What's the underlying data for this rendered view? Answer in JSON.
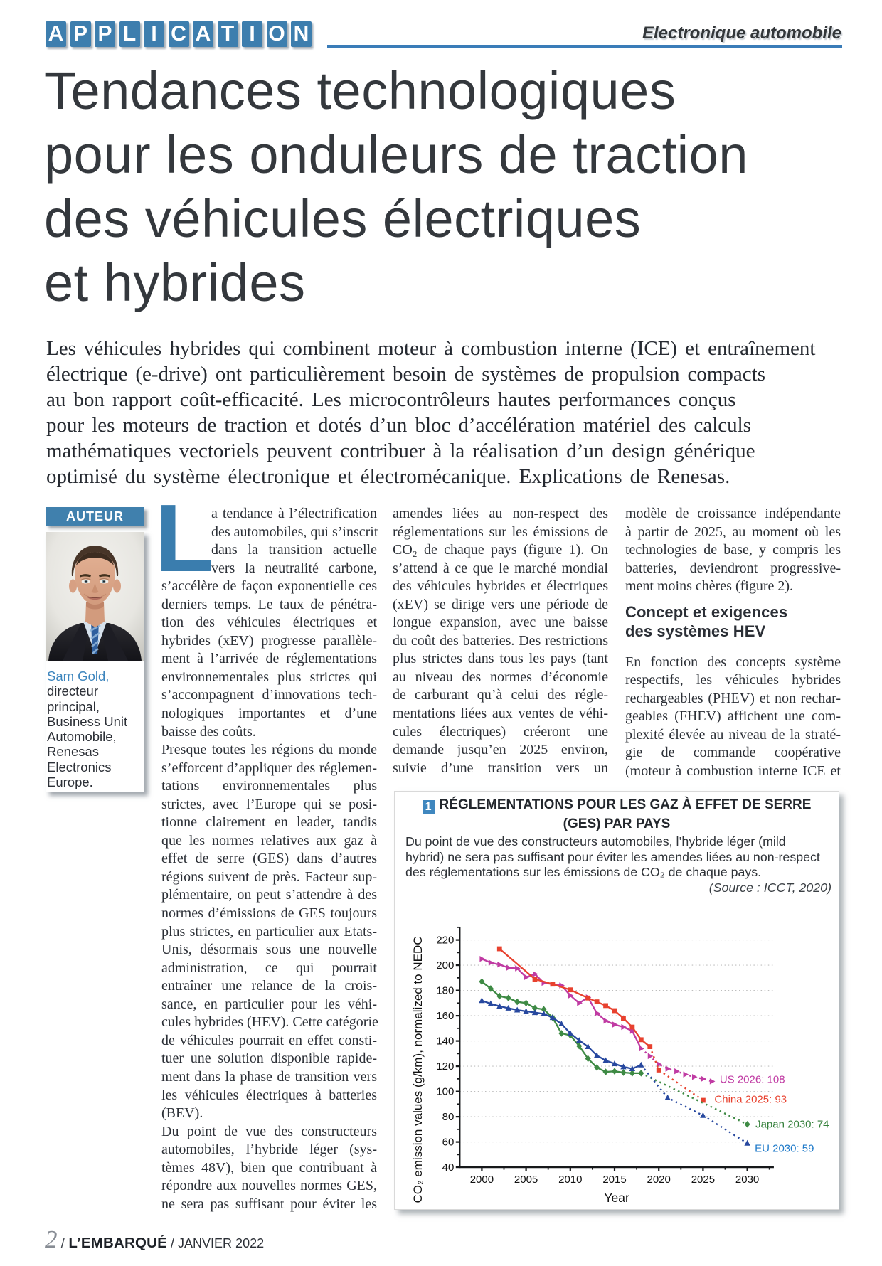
{
  "header": {
    "kicker_letters": "APPLICATION",
    "rubric": "Electronique automobile",
    "accent_color": "#3a7cb8"
  },
  "article": {
    "title_lines": [
      "Tendances technologiques",
      "pour les onduleurs de traction",
      "des véhicules électriques",
      "et hybrides"
    ],
    "lede_lines": [
      "Les véhicules hybrides qui combinent moteur à combustion interne (ICE) et entraînement",
      "électrique (e-drive) ont particulièrement besoin de systèmes de propulsion compacts",
      "au bon rapport coût-efficacité. Les microcontrôleurs hautes performances conçus",
      "pour les moteurs de traction et dotés d’un bloc d’accélération matériel des calculs",
      "mathématiques vectoriels peuvent contribuer à la réalisation d’un design générique",
      "optimisé du système électronique et électromécanique. Explications de Renesas."
    ]
  },
  "author": {
    "box_label": "AUTEUR",
    "name": "Sam Gold,",
    "role_lines": [
      "directeur",
      "principal,",
      "Business Unit",
      "Automobile,",
      "Renesas",
      "Electronics",
      "Europe."
    ]
  },
  "columns": {
    "col1": {
      "dropcap": "L",
      "blocks": [
        {
          "type": "p",
          "lines": [
            "a tendance à l’électrification",
            "des automobiles, qui s’inscrit",
            "dans la transition actuelle",
            "vers la neutralité carbone,",
            "s’accélère de façon exponentielle ces",
            "derniers temps. Le taux de pénétra-",
            "tion des véhicules électriques et",
            "hybrides (xEV) progresse parallèle-",
            "ment à l’arrivée de réglementations",
            "environnementales plus strictes qui",
            "s’accompagnent d’innovations tech-",
            "nologiques importantes et d’une",
            "baisse des coûts."
          ]
        },
        {
          "type": "p",
          "lines": [
            "Presque toutes les régions du monde",
            "s’efforcent d’appliquer des réglemen-",
            "tations environnementales plus",
            "strictes, avec l’Europe qui se posi-",
            "tionne clairement  en leader, tandis",
            "que les normes relatives aux gaz à",
            "effet de serre (GES) dans d’autres",
            "régions suivent de près. Facteur sup-",
            "plémentaire, on peut s’attendre à des",
            "normes d’émissions de GES toujours",
            "plus strictes, en particulier aux Etats-",
            "Unis, désormais sous une nouvelle",
            "administration, ce qui pourrait",
            "entraîner une relance de la crois-",
            "sance, en particulier pour les véhi-",
            "cules hybrides (HEV). Cette catégorie",
            "de véhicules pourrait en effet consti-",
            "tuer une solution disponible rapide-",
            "ment dans la phase de transition vers",
            "les véhicules électriques à batteries",
            "(BEV)."
          ]
        },
        {
          "type": "p",
          "cont": true,
          "lines": [
            "Du point de vue des constructeurs",
            "automobiles, l’hybride léger (sys-",
            "tèmes 48V), bien que contribuant à",
            "répondre aux nouvelles normes GES,",
            "ne sera pas suffisant pour éviter les"
          ]
        }
      ]
    },
    "col2": {
      "blocks": [
        {
          "type": "p",
          "cont": true,
          "lines": [
            "amendes liées au non-respect des",
            "réglementations sur les émissions de",
            "CO₂ de chaque pays (figure 1). On",
            "s’attend à ce que le marché mondial",
            "des véhicules hybrides et électriques",
            "(xEV) se dirige vers une période de",
            "longue expansion, avec une baisse",
            "du coût des batteries. Des restrictions",
            "plus strictes dans tous les pays (tant",
            "au niveau des normes d’économie",
            "de carburant qu’à celui des régle-",
            "mentations liées aux ventes de véhi-",
            "cules électriques) créeront une",
            "demande jusqu’en 2025 environ,",
            "suivie d’une transition vers un"
          ]
        }
      ]
    },
    "col3": {
      "blocks": [
        {
          "type": "p",
          "lines": [
            "modèle de croissance indépendante",
            "à partir de 2025, au moment où les",
            "technologies de base, y compris les",
            "batteries, deviendront progressive-",
            "ment moins chères (figure 2)."
          ]
        },
        {
          "type": "h2",
          "lines": [
            "Concept et exigences",
            "des systèmes HEV"
          ]
        },
        {
          "type": "p",
          "cont": true,
          "lines": [
            "En fonction des concepts système",
            "respectifs, les véhicules hybrides",
            "rechargeables (PHEV) et non rechar-",
            "geables (FHEV) affichent une com-",
            "plexité élevée au niveau de la straté-",
            "gie de commande coopérative",
            "(moteur à combustion interne ICE et"
          ]
        }
      ]
    }
  },
  "figure": {
    "number": "1",
    "title_lines": [
      "RÉGLEMENTATIONS POUR LES GAZ À EFFET DE SERRE",
      "(GES) PAR PAYS"
    ],
    "desc_lines": [
      "Du point de vue des constructeurs automobiles, l’hybride léger (mild",
      "hybrid) ne sera pas suffisant pour éviter les amendes liées au non-respect",
      "des réglementations sur les émissions de CO₂ de chaque pays."
    ],
    "source": "(Source : ICCT, 2020)"
  },
  "chart_data": {
    "type": "line",
    "xlabel": "Year",
    "ylabel": "CO₂ emission values (g/km), normalized to NEDC",
    "xlim": [
      1997.5,
      2033
    ],
    "ylim": [
      40,
      230
    ],
    "xticks": [
      2000,
      2005,
      2010,
      2015,
      2020,
      2025,
      2030
    ],
    "yticks": [
      40,
      60,
      80,
      100,
      120,
      140,
      160,
      180,
      200,
      220
    ],
    "grid": "horizontal-dotted",
    "legend_position": "end-of-line-labels",
    "series": [
      {
        "name": "US",
        "color": "#c03ba3",
        "marker": "triangle-right",
        "label": "US 2026: 108",
        "label_color": "#c03ba3",
        "solid": [
          [
            2000,
            205
          ],
          [
            2001,
            202
          ],
          [
            2002,
            200.5
          ],
          [
            2003,
            198
          ],
          [
            2004,
            197.5
          ],
          [
            2005,
            190.5
          ],
          [
            2006,
            193
          ],
          [
            2007,
            186
          ],
          [
            2008,
            185
          ],
          [
            2009,
            184
          ],
          [
            2010,
            176
          ],
          [
            2011,
            170
          ],
          [
            2012,
            174.5
          ],
          [
            2013,
            162
          ],
          [
            2014,
            156
          ],
          [
            2015,
            153
          ],
          [
            2016,
            151
          ],
          [
            2017,
            148
          ],
          [
            2018,
            134
          ]
        ],
        "dotted": [
          [
            2018,
            134
          ],
          [
            2019,
            128
          ],
          [
            2020,
            121.5
          ],
          [
            2021,
            118
          ],
          [
            2022,
            116
          ],
          [
            2023,
            113.5
          ],
          [
            2024,
            111.5
          ],
          [
            2025,
            110
          ],
          [
            2026,
            108
          ]
        ],
        "dotted_marker_years": [
          2019,
          2020,
          2021,
          2022,
          2023,
          2024,
          2025,
          2026
        ]
      },
      {
        "name": "China",
        "color": "#e8412e",
        "marker": "square",
        "label": "China 2025: 93",
        "label_color": "#e8412e",
        "solid": [
          [
            2002,
            213
          ],
          [
            2006,
            189
          ],
          [
            2008,
            185
          ],
          [
            2010,
            180.5
          ],
          [
            2012,
            174
          ],
          [
            2013,
            171
          ],
          [
            2014,
            168
          ],
          [
            2015,
            164
          ],
          [
            2016,
            158
          ],
          [
            2017,
            151
          ],
          [
            2018,
            141
          ],
          [
            2019,
            135.5
          ]
        ],
        "dotted": [
          [
            2019,
            135.5
          ],
          [
            2020,
            117
          ],
          [
            2025,
            93
          ]
        ],
        "dotted_marker_years": [
          2020,
          2025
        ]
      },
      {
        "name": "Japan",
        "color": "#3e8a44",
        "marker": "diamond",
        "label": "Japan 2030: 74",
        "label_color": "#35803b",
        "solid": [
          [
            2000,
            187
          ],
          [
            2001,
            181.5
          ],
          [
            2002,
            175.5
          ],
          [
            2003,
            174
          ],
          [
            2004,
            171
          ],
          [
            2005,
            170
          ],
          [
            2006,
            166
          ],
          [
            2007,
            165
          ],
          [
            2008,
            158.5
          ],
          [
            2009,
            146
          ],
          [
            2010,
            144.5
          ],
          [
            2011,
            136
          ],
          [
            2012,
            126
          ],
          [
            2013,
            119
          ],
          [
            2014,
            115.5
          ],
          [
            2015,
            116
          ],
          [
            2016,
            115
          ],
          [
            2017,
            114.5
          ],
          [
            2018,
            114.5
          ]
        ],
        "dotted": [
          [
            2018,
            114.5
          ],
          [
            2030,
            74
          ]
        ],
        "dotted_marker_years": [
          2030
        ]
      },
      {
        "name": "EU",
        "color": "#27489f",
        "marker": "triangle-up",
        "label": "EU 2030: 59",
        "label_color": "#1f7ac9",
        "solid": [
          [
            2000,
            172
          ],
          [
            2001,
            169.5
          ],
          [
            2002,
            167.5
          ],
          [
            2003,
            166
          ],
          [
            2004,
            164.5
          ],
          [
            2005,
            163.5
          ],
          [
            2006,
            162.5
          ],
          [
            2007,
            161.5
          ],
          [
            2008,
            158.5
          ],
          [
            2009,
            153.5
          ],
          [
            2010,
            146
          ],
          [
            2011,
            140.5
          ],
          [
            2012,
            135.5
          ],
          [
            2013,
            128.5
          ],
          [
            2014,
            124.5
          ],
          [
            2015,
            122
          ],
          [
            2016,
            119.5
          ],
          [
            2017,
            118
          ],
          [
            2018,
            121
          ]
        ],
        "dotted": [
          [
            2018,
            121
          ],
          [
            2021,
            95
          ],
          [
            2025,
            81
          ],
          [
            2030,
            59
          ]
        ],
        "dotted_marker_years": [
          2021,
          2025,
          2030
        ]
      }
    ]
  },
  "footer": {
    "page_number": "2",
    "separator": "/",
    "magazine": "L’EMBARQUÉ",
    "issue": "JANVIER 2022"
  }
}
